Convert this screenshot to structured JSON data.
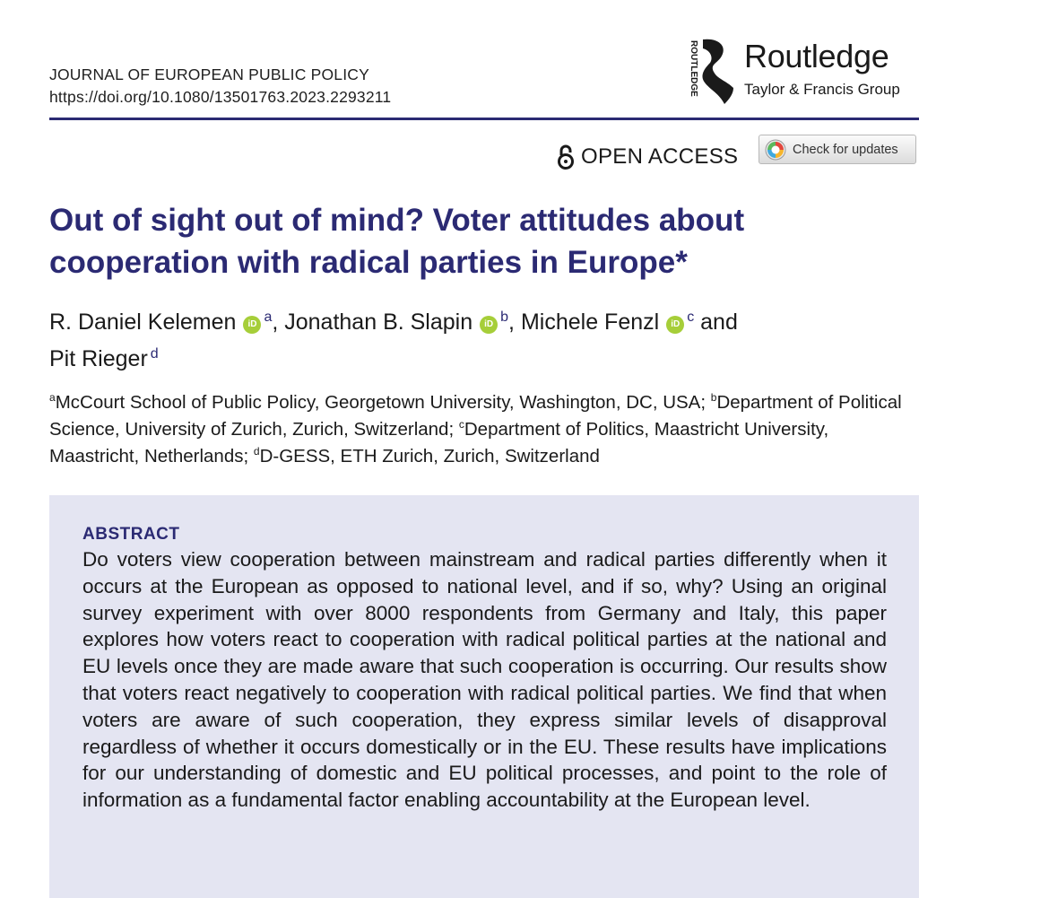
{
  "header": {
    "journal": "JOURNAL OF EUROPEAN PUBLIC POLICY",
    "doi": "https://doi.org/10.1080/13501763.2023.2293211"
  },
  "publisher": {
    "name": "Routledge",
    "group": "Taylor & Francis Group",
    "mark_text": "ROUTLEDGE"
  },
  "access": {
    "label": "OPEN ACCESS",
    "updates_label": "Check for updates"
  },
  "paper": {
    "title": "Out of sight out of mind? Voter attitudes about cooperation with radical parties in Europe*",
    "authors": [
      {
        "name": "R. Daniel Kelemen",
        "orcid": "iD",
        "aff": "a"
      },
      {
        "name": "Jonathan B. Slapin",
        "orcid": "iD",
        "aff": "b"
      },
      {
        "name": "Michele Fenzl",
        "orcid": "iD",
        "aff": "c"
      },
      {
        "name": "Pit Rieger",
        "aff": "d"
      }
    ],
    "sep_comma": ", ",
    "sep_and": " and ",
    "affiliations": [
      {
        "sup": "a",
        "text": "McCourt School of Public Policy, Georgetown University, Washington, DC, USA; "
      },
      {
        "sup": "b",
        "text": "Department of Political Science, University of Zurich,  Zurich, Switzerland; "
      },
      {
        "sup": "c",
        "text": "Department of Politics, Maastricht University, Maastricht, Netherlands; "
      },
      {
        "sup": "d",
        "text": "D-GESS, ETH Zurich, Zurich, Switzerland"
      }
    ]
  },
  "abstract": {
    "heading": "ABSTRACT",
    "text": "Do voters view cooperation between mainstream and radical parties differently when it occurs at the European as opposed to national level, and if so, why? Using an original survey experiment with over 8000 respondents from Germany and Italy, this paper explores how voters react to cooperation with radical political parties at the national and EU levels once they are made aware that such cooperation is occurring. Our results show that voters react negatively to cooperation with radical political parties. We find that when voters are aware of such cooperation, they express similar levels of disapproval regardless of whether it occurs domestically or in the EU. These results have implications for our understanding of domestic and EU political processes, and point to the role of information as a fundamental factor enabling accountability at the European level."
  },
  "colors": {
    "accent": "#2b2a73",
    "abstract_bg": "#e4e5f2",
    "orcid": "#a6ce39"
  },
  "icons": [
    "routledge-logo-icon",
    "open-lock-icon",
    "crossmark-icon",
    "orcid-icon"
  ]
}
